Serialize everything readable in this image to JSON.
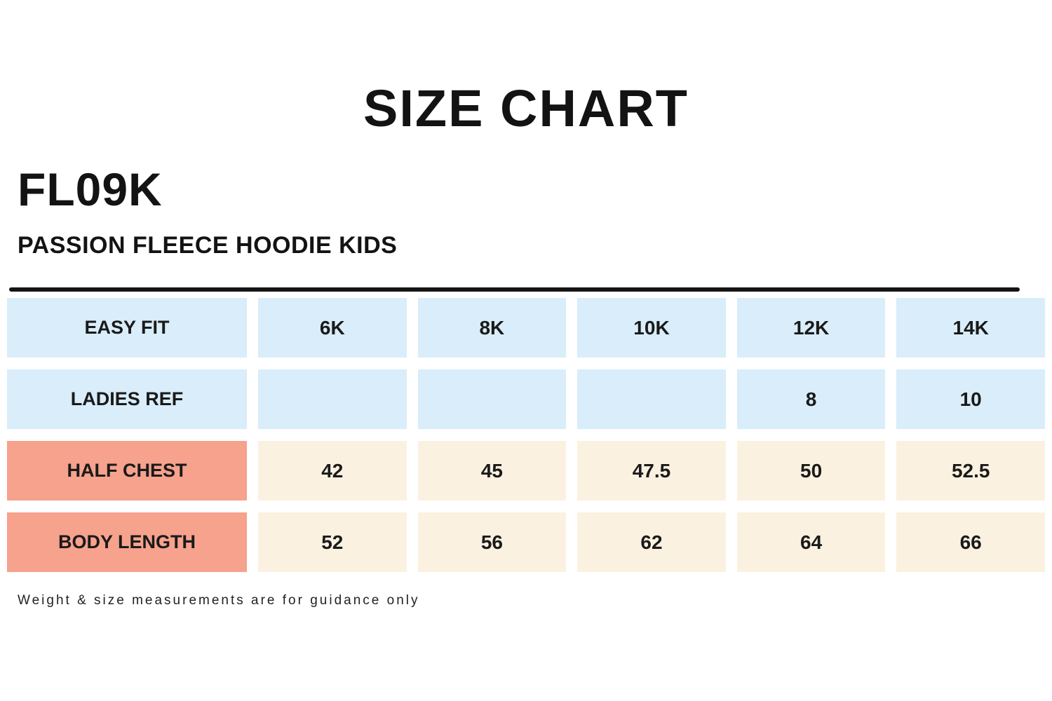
{
  "title": "SIZE CHART",
  "product": {
    "code": "FL09K",
    "name": "PASSION FLEECE HOODIE KIDS"
  },
  "table": {
    "rows": [
      {
        "label": "EASY FIT",
        "values": [
          "6K",
          "8K",
          "10K",
          "12K",
          "14K"
        ]
      },
      {
        "label": "LADIES REF",
        "values": [
          "",
          "",
          "",
          "8",
          "10"
        ]
      },
      {
        "label": "HALF CHEST",
        "values": [
          "42",
          "45",
          "47.5",
          "50",
          "52.5"
        ]
      },
      {
        "label": "BODY LENGTH",
        "values": [
          "52",
          "56",
          "62",
          "64",
          "66"
        ]
      }
    ]
  },
  "footer": "Weight & size measurements are for guidance only",
  "colors": {
    "header_cell": "#D9EDFA",
    "measure_label_cell": "#F6A28D",
    "measure_value_cell": "#FBF1E0",
    "text": "#141414"
  },
  "chart_data": {
    "type": "table",
    "title": "SIZE CHART",
    "columns": [
      "EASY FIT",
      "6K",
      "8K",
      "10K",
      "12K",
      "14K"
    ],
    "rows": [
      [
        "LADIES REF",
        "",
        "",
        "",
        "8",
        "10"
      ],
      [
        "HALF CHEST",
        "42",
        "45",
        "47.5",
        "50",
        "52.5"
      ],
      [
        "BODY LENGTH",
        "52",
        "56",
        "62",
        "64",
        "66"
      ]
    ]
  }
}
